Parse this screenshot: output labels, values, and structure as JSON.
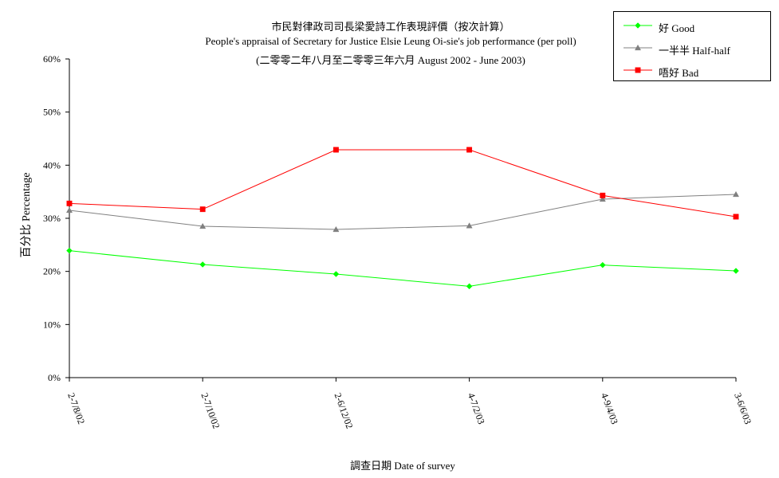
{
  "chart_data": {
    "type": "line",
    "title": "市民對律政司司長梁愛詩工作表現評價（按次計算）",
    "subtitle": "People's appraisal of Secretary for Justice Elsie Leung Oi-sie's job performance (per poll)",
    "subtitle2": "(二零零二年八月至二零零三年六月 August 2002 - June 2003)",
    "xlabel": "調查日期 Date of survey",
    "ylabel": "百分比 Percentage",
    "categories": [
      "2-7/8/02",
      "2-7/10/02",
      "2-6/12/02",
      "4-7/2/03",
      "4-9/4/03",
      "3-6/6/03"
    ],
    "ylim": [
      0,
      60
    ],
    "yticks": [
      "0%",
      "10%",
      "20%",
      "30%",
      "40%",
      "50%",
      "60%"
    ],
    "grid": false,
    "legend_position": "top-right",
    "series": [
      {
        "name": "好 Good",
        "color": "#00ff00",
        "marker": "diamond",
        "values": [
          23.9,
          21.3,
          19.5,
          17.2,
          21.2,
          20.1
        ]
      },
      {
        "name": "一半半 Half-half",
        "color": "#808080",
        "marker": "triangle",
        "values": [
          31.5,
          28.5,
          27.9,
          28.6,
          33.6,
          34.5
        ]
      },
      {
        "name": "唔好 Bad",
        "color": "#ff0000",
        "marker": "square",
        "values": [
          32.8,
          31.7,
          42.9,
          42.9,
          34.3,
          30.3
        ]
      }
    ]
  }
}
